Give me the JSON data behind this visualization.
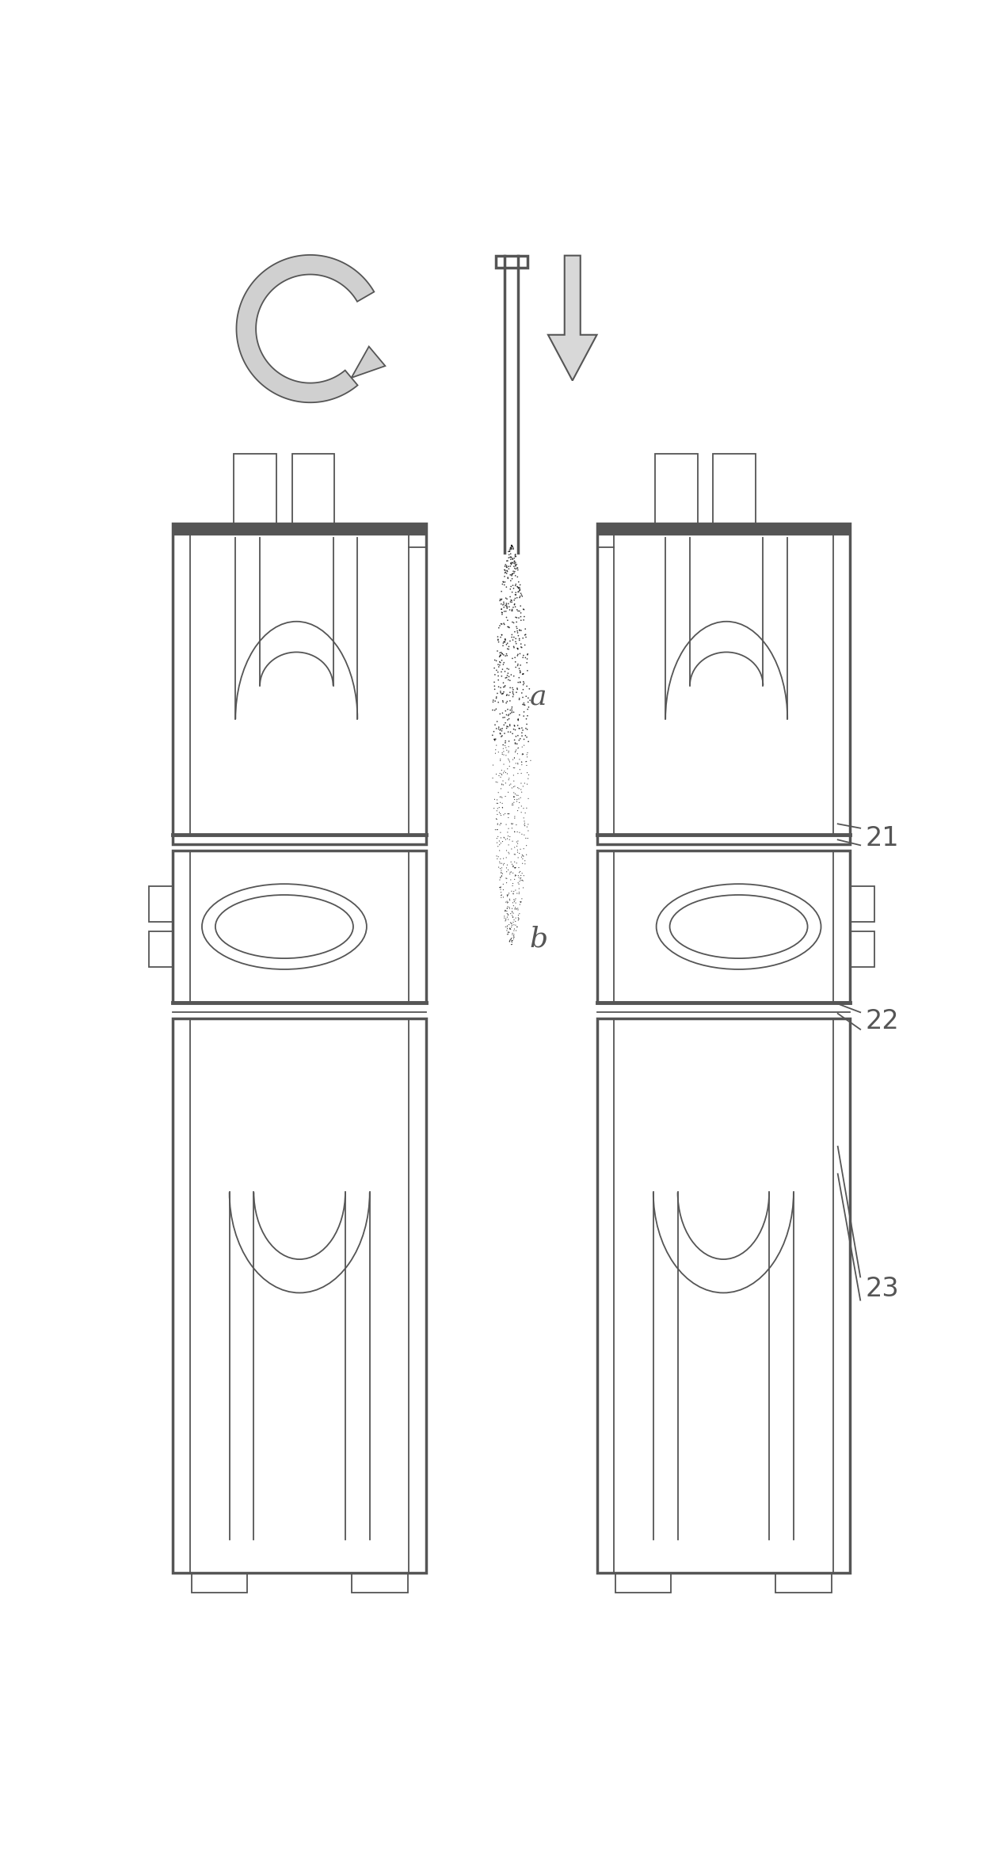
{
  "bg_color": "#ffffff",
  "line_color": "#555555",
  "lw_outer": 2.5,
  "lw_inner": 1.3,
  "lw_sep": 3.5,
  "figsize": [
    12.6,
    23.36
  ],
  "dpi": 100,
  "label_a": "a",
  "label_b": "b",
  "label_21": "21",
  "label_22": "22",
  "label_23": "23"
}
